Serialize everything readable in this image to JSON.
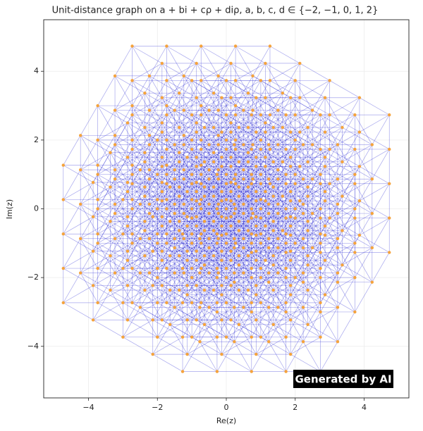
{
  "chart_data": {
    "type": "scatter",
    "title": "Unit-distance graph on a + bi + cρ + diρ, a, b, c, d ∈ {−2, −1, 0, 1, 2}",
    "xlabel": "Re(z)",
    "ylabel": "Im(z)",
    "xlim": [
      -5.3,
      5.3
    ],
    "ylim": [
      -5.5,
      5.5
    ],
    "xticks": [
      {
        "value": -4,
        "label": "−4"
      },
      {
        "value": -2,
        "label": "−2"
      },
      0,
      2,
      4
    ],
    "yticks": [
      {
        "value": -4,
        "label": "−4"
      },
      {
        "value": -2,
        "label": "−2"
      },
      0,
      2,
      4
    ],
    "grid": true,
    "point_color": "#f5a33c",
    "edge_color": "#3a3ad8",
    "watermark": "Generated by AI",
    "groups": [
      {
        "x": [
          -1.268,
          -0.268,
          0.732,
          1.732,
          2.732
        ],
        "y": [
          -4.732,
          -3.732,
          -2.732,
          -1.732,
          -0.732
        ]
      },
      {
        "x": [
          -2.134,
          -1.134,
          -0.134,
          0.866,
          1.866
        ],
        "y": [
          -4.232,
          -3.232,
          -2.232,
          -1.232,
          -0.232
        ]
      },
      {
        "x": [
          -3,
          -2,
          -1,
          0,
          1
        ],
        "y": [
          -3.732,
          -2.732,
          -1.732,
          -0.732,
          0.268
        ]
      },
      {
        "x": [
          -3.866,
          -2.866,
          -1.866,
          -0.866,
          0.134
        ],
        "y": [
          -3.232,
          -2.232,
          -1.232,
          -0.232,
          0.768
        ]
      },
      {
        "x": [
          -4.732,
          -3.732,
          -2.732,
          -1.732,
          -0.732
        ],
        "y": [
          -2.732,
          -1.732,
          -0.732,
          0.268,
          1.268
        ]
      },
      {
        "x": [
          -0.768,
          0.232,
          1.232,
          2.232,
          3.232
        ],
        "y": [
          -3.866,
          -2.866,
          -1.866,
          -0.866,
          0.134
        ]
      },
      {
        "x": [
          -1.634,
          -0.634,
          0.366,
          1.366,
          2.366
        ],
        "y": [
          -3.366,
          -2.366,
          -1.366,
          -0.366,
          0.634
        ]
      },
      {
        "x": [
          -2.5,
          -1.5,
          -0.5,
          0.5,
          1.5
        ],
        "y": [
          -2.866,
          -1.866,
          -0.866,
          0.134,
          1.134
        ]
      },
      {
        "x": [
          -3.366,
          -2.366,
          -1.366,
          -0.366,
          0.634
        ],
        "y": [
          -2.366,
          -1.366,
          -0.366,
          0.634,
          1.634
        ]
      },
      {
        "x": [
          -4.232,
          -3.232,
          -2.232,
          -1.232,
          -0.232
        ],
        "y": [
          -1.866,
          -0.866,
          0.134,
          1.134,
          2.134
        ]
      },
      {
        "x": [
          -0.268,
          0.732,
          1.732,
          2.732,
          3.732
        ],
        "y": [
          -3,
          -2,
          -1,
          0,
          1
        ]
      },
      {
        "x": [
          -1.134,
          -0.134,
          0.866,
          1.866,
          2.866
        ],
        "y": [
          -2.5,
          -1.5,
          -0.5,
          0.5,
          1.5
        ]
      },
      {
        "x": [
          -2,
          -1,
          0,
          1,
          2
        ],
        "y": [
          -2,
          -1,
          0,
          1,
          2
        ]
      },
      {
        "x": [
          -2.866,
          -1.866,
          -0.866,
          0.134,
          1.134
        ],
        "y": [
          -1.5,
          -0.5,
          0.5,
          1.5,
          2.5
        ]
      },
      {
        "x": [
          -3.732,
          -2.732,
          -1.732,
          -0.732,
          0.268
        ],
        "y": [
          -1,
          0,
          1,
          2,
          3
        ]
      },
      {
        "x": [
          0.232,
          1.232,
          2.232,
          3.232,
          4.232
        ],
        "y": [
          -2.134,
          -1.134,
          -0.134,
          0.866,
          1.866
        ]
      },
      {
        "x": [
          -0.634,
          0.366,
          1.366,
          2.366,
          3.366
        ],
        "y": [
          -1.634,
          -0.634,
          0.366,
          1.366,
          2.366
        ]
      },
      {
        "x": [
          -1.5,
          -0.5,
          0.5,
          1.5,
          2.5
        ],
        "y": [
          -1.134,
          -0.134,
          0.866,
          1.866,
          2.866
        ]
      },
      {
        "x": [
          -2.366,
          -1.366,
          -0.366,
          0.634,
          1.634
        ],
        "y": [
          -0.634,
          0.366,
          1.366,
          2.366,
          3.366
        ]
      },
      {
        "x": [
          -3.232,
          -2.232,
          -1.232,
          -0.232,
          0.768
        ],
        "y": [
          -0.134,
          0.866,
          1.866,
          2.866,
          3.866
        ]
      },
      {
        "x": [
          0.732,
          1.732,
          2.732,
          3.732,
          4.732
        ],
        "y": [
          -1.268,
          -0.268,
          0.732,
          1.732,
          2.732
        ]
      },
      {
        "x": [
          -0.134,
          0.866,
          1.866,
          2.866,
          3.866
        ],
        "y": [
          -0.768,
          0.232,
          1.232,
          2.232,
          3.232
        ]
      },
      {
        "x": [
          -1,
          0,
          1,
          2,
          3
        ],
        "y": [
          -0.268,
          0.732,
          1.732,
          2.732,
          3.732
        ]
      },
      {
        "x": [
          -1.866,
          -0.866,
          0.134,
          1.134,
          2.134
        ],
        "y": [
          0.232,
          1.232,
          2.232,
          3.232,
          4.232
        ]
      },
      {
        "x": [
          -2.732,
          -1.732,
          -0.732,
          0.268,
          1.268
        ],
        "y": [
          0.732,
          1.732,
          2.732,
          3.732,
          4.732
        ]
      }
    ]
  }
}
